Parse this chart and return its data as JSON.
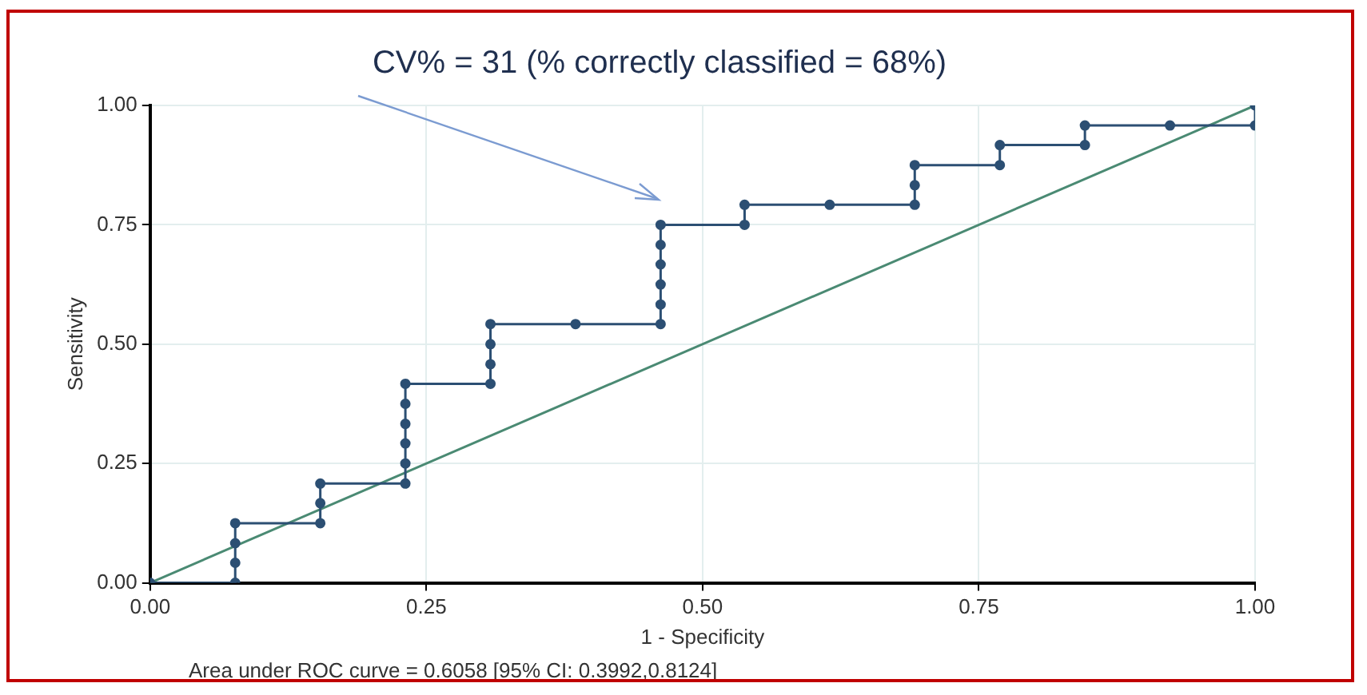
{
  "chart_data": {
    "type": "line",
    "title": "CV% = 31 (% correctly classified = 68%)",
    "xlabel": "1 - Specificity",
    "ylabel": "Sensitivity",
    "annotations": [
      "Area under ROC curve = 0.6058 [95% CI: 0.3992,0.8124]"
    ],
    "xlim": [
      0,
      1
    ],
    "ylim": [
      0,
      1
    ],
    "xticks": [
      {
        "value": 0,
        "label": "0.00"
      },
      {
        "value": 0.25,
        "label": "0.25"
      },
      {
        "value": 0.5,
        "label": "0.50"
      },
      {
        "value": 0.75,
        "label": "0.75"
      },
      {
        "value": 1,
        "label": "1.00"
      }
    ],
    "yticks": [
      {
        "value": 0,
        "label": "0.00"
      },
      {
        "value": 0.25,
        "label": "0.25"
      },
      {
        "value": 0.5,
        "label": "0.50"
      },
      {
        "value": 0.75,
        "label": "0.75"
      },
      {
        "value": 1,
        "label": "1.00"
      }
    ],
    "grid": true,
    "legend": false,
    "series": [
      {
        "color": "#2c4f73",
        "marker": "circle",
        "x": [
          0,
          0.077,
          0.077,
          0.077,
          0.077,
          0.154,
          0.154,
          0.154,
          0.231,
          0.231,
          0.231,
          0.231,
          0.231,
          0.231,
          0.308,
          0.308,
          0.308,
          0.308,
          0.385,
          0.462,
          0.462,
          0.462,
          0.462,
          0.462,
          0.462,
          0.538,
          0.538,
          0.615,
          0.692,
          0.692,
          0.692,
          0.769,
          0.769,
          0.846,
          0.846,
          0.923,
          1,
          1
        ],
        "values": [
          0,
          0,
          0.042,
          0.083,
          0.125,
          0.125,
          0.167,
          0.208,
          0.208,
          0.25,
          0.292,
          0.333,
          0.375,
          0.417,
          0.417,
          0.458,
          0.5,
          0.542,
          0.542,
          0.542,
          0.583,
          0.625,
          0.667,
          0.708,
          0.75,
          0.75,
          0.792,
          0.792,
          0.792,
          0.833,
          0.875,
          0.875,
          0.917,
          0.917,
          0.958,
          0.958,
          0.958,
          1
        ]
      },
      {
        "color": "#4a8a73",
        "marker": "none",
        "x": [
          0,
          1
        ],
        "values": [
          0,
          1
        ]
      }
    ]
  }
}
